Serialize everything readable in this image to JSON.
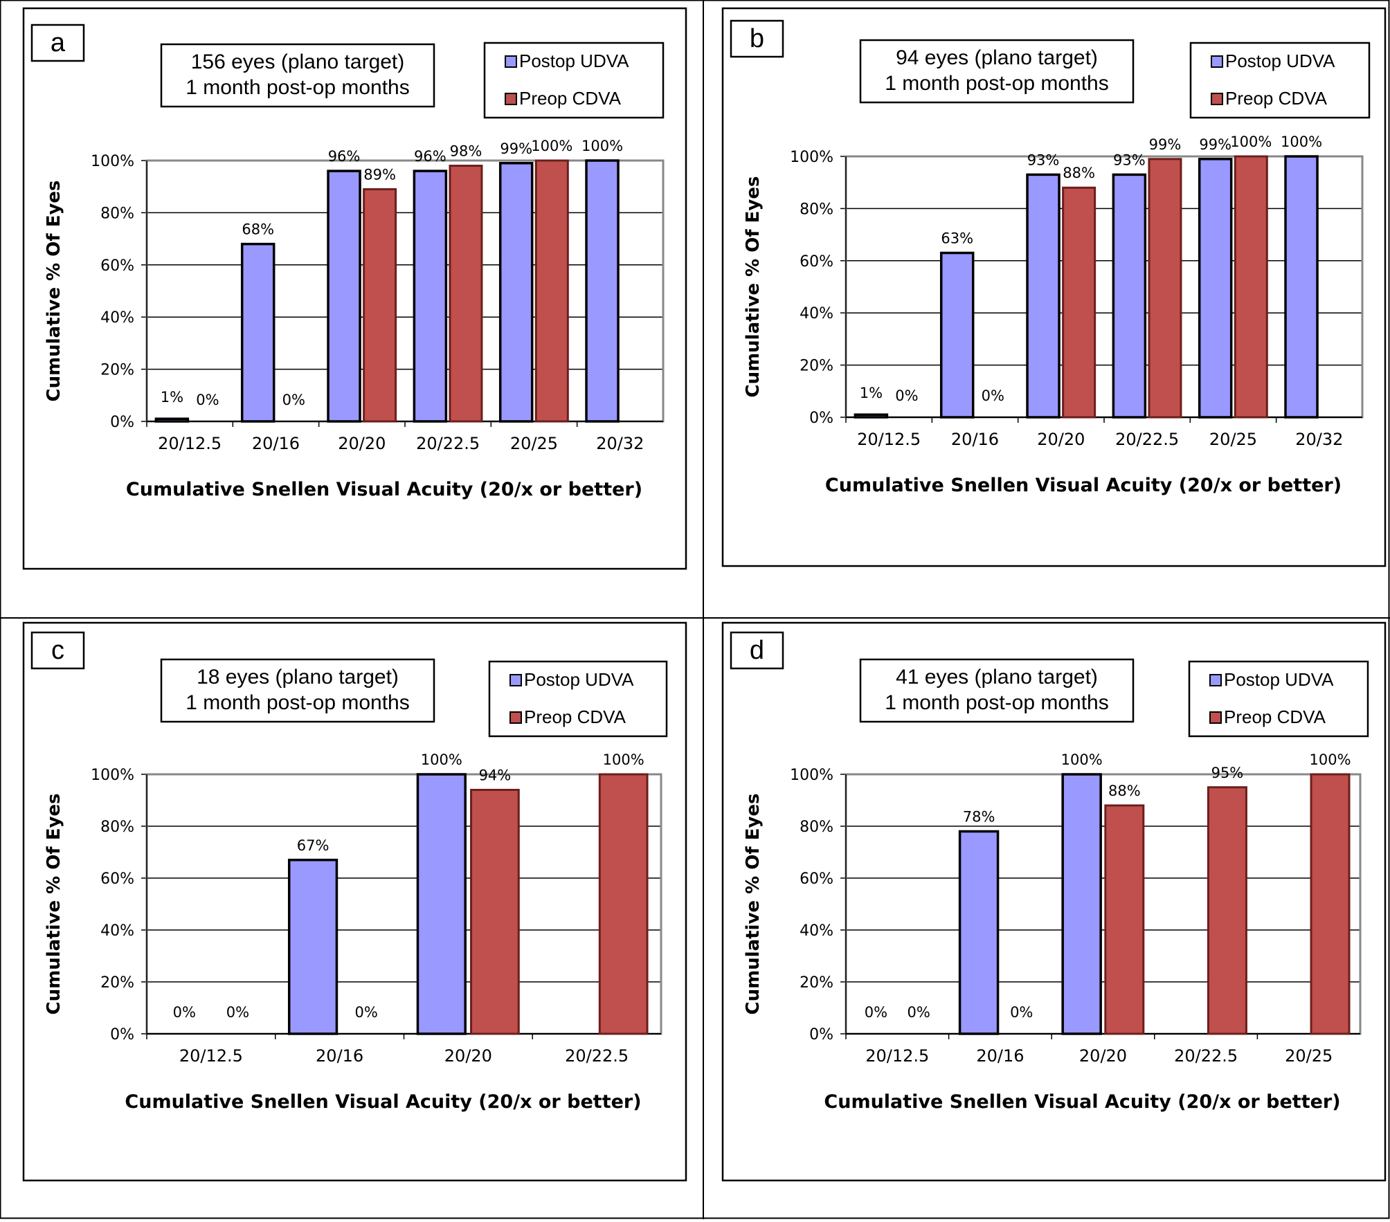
{
  "chart_data": [
    {
      "panel": "a",
      "type": "bar",
      "title_lines": [
        "156 eyes (plano target)",
        "1 month post-op months"
      ],
      "categories": [
        "20/12.5",
        "20/16",
        "20/20",
        "20/22.5",
        "20/25",
        "20/32"
      ],
      "series": [
        {
          "name": "Postop UDVA",
          "color": "#9999ff",
          "values": [
            1,
            68,
            96,
            96,
            99,
            100
          ],
          "labels": [
            "1%",
            "68%",
            "96%",
            "96%",
            "99%",
            "100%"
          ]
        },
        {
          "name": "Preop CDVA",
          "color": "#c0504d",
          "values": [
            0,
            0,
            89,
            98,
            100,
            null
          ],
          "labels": [
            "0%",
            "0%",
            "89%",
            "98%",
            "100%",
            null
          ]
        }
      ],
      "yticks": [
        "0%",
        "20%",
        "40%",
        "60%",
        "80%",
        "100%"
      ],
      "ylim": [
        0,
        100
      ],
      "ylabel": "Cumulative % Of Eyes",
      "xlabel": "Cumulative Snellen Visual Acuity (20/x or better)"
    },
    {
      "panel": "b",
      "type": "bar",
      "title_lines": [
        "94 eyes (plano target)",
        "1 month post-op months"
      ],
      "categories": [
        "20/12.5",
        "20/16",
        "20/20",
        "20/22.5",
        "20/25",
        "20/32"
      ],
      "series": [
        {
          "name": "Postop UDVA",
          "color": "#9999ff",
          "values": [
            1,
            63,
            93,
            93,
            99,
            100
          ],
          "labels": [
            "1%",
            "63%",
            "93%",
            "93%",
            "99%",
            "100%"
          ]
        },
        {
          "name": "Preop CDVA",
          "color": "#c0504d",
          "values": [
            0,
            0,
            88,
            99,
            100,
            null
          ],
          "labels": [
            "0%",
            "0%",
            "88%",
            "99%",
            "100%",
            null
          ]
        }
      ],
      "yticks": [
        "0%",
        "20%",
        "40%",
        "60%",
        "80%",
        "100%"
      ],
      "ylim": [
        0,
        100
      ],
      "ylabel": "Cumulative % Of Eyes",
      "xlabel": "Cumulative Snellen Visual Acuity (20/x or better)"
    },
    {
      "panel": "c",
      "type": "bar",
      "title_lines": [
        "18 eyes (plano target)",
        "1 month post-op months"
      ],
      "categories": [
        "20/12.5",
        "20/16",
        "20/20",
        "20/22.5"
      ],
      "series": [
        {
          "name": "Postop UDVA",
          "color": "#9999ff",
          "values": [
            0,
            67,
            100,
            null
          ],
          "labels": [
            "0%",
            "67%",
            "100%",
            null
          ]
        },
        {
          "name": "Preop CDVA",
          "color": "#c0504d",
          "values": [
            0,
            0,
            94,
            100
          ],
          "labels": [
            "0%",
            "0%",
            "94%",
            "100%"
          ]
        }
      ],
      "yticks": [
        "0%",
        "20%",
        "40%",
        "60%",
        "80%",
        "100%"
      ],
      "ylim": [
        0,
        100
      ],
      "ylabel": "Cumulative % Of Eyes",
      "xlabel": "Cumulative Snellen Visual Acuity (20/x or better)"
    },
    {
      "panel": "d",
      "type": "bar",
      "title_lines": [
        "41 eyes (plano target)",
        "1 month post-op months"
      ],
      "categories": [
        "20/12.5",
        "20/16",
        "20/20",
        "20/22.5",
        "20/25"
      ],
      "series": [
        {
          "name": "Postop UDVA",
          "color": "#9999ff",
          "values": [
            0,
            78,
            100,
            null,
            null
          ],
          "labels": [
            "0%",
            "78%",
            "100%",
            null,
            null
          ]
        },
        {
          "name": "Preop CDVA",
          "color": "#c0504d",
          "values": [
            0,
            0,
            88,
            95,
            100
          ],
          "labels": [
            "0%",
            "0%",
            "88%",
            "95%",
            "100%"
          ]
        }
      ],
      "yticks": [
        "0%",
        "20%",
        "40%",
        "60%",
        "80%",
        "100%"
      ],
      "ylim": [
        0,
        100
      ],
      "ylabel": "Cumulative % Of Eyes",
      "xlabel": "Cumulative Snellen Visual Acuity (20/x or better)"
    }
  ]
}
